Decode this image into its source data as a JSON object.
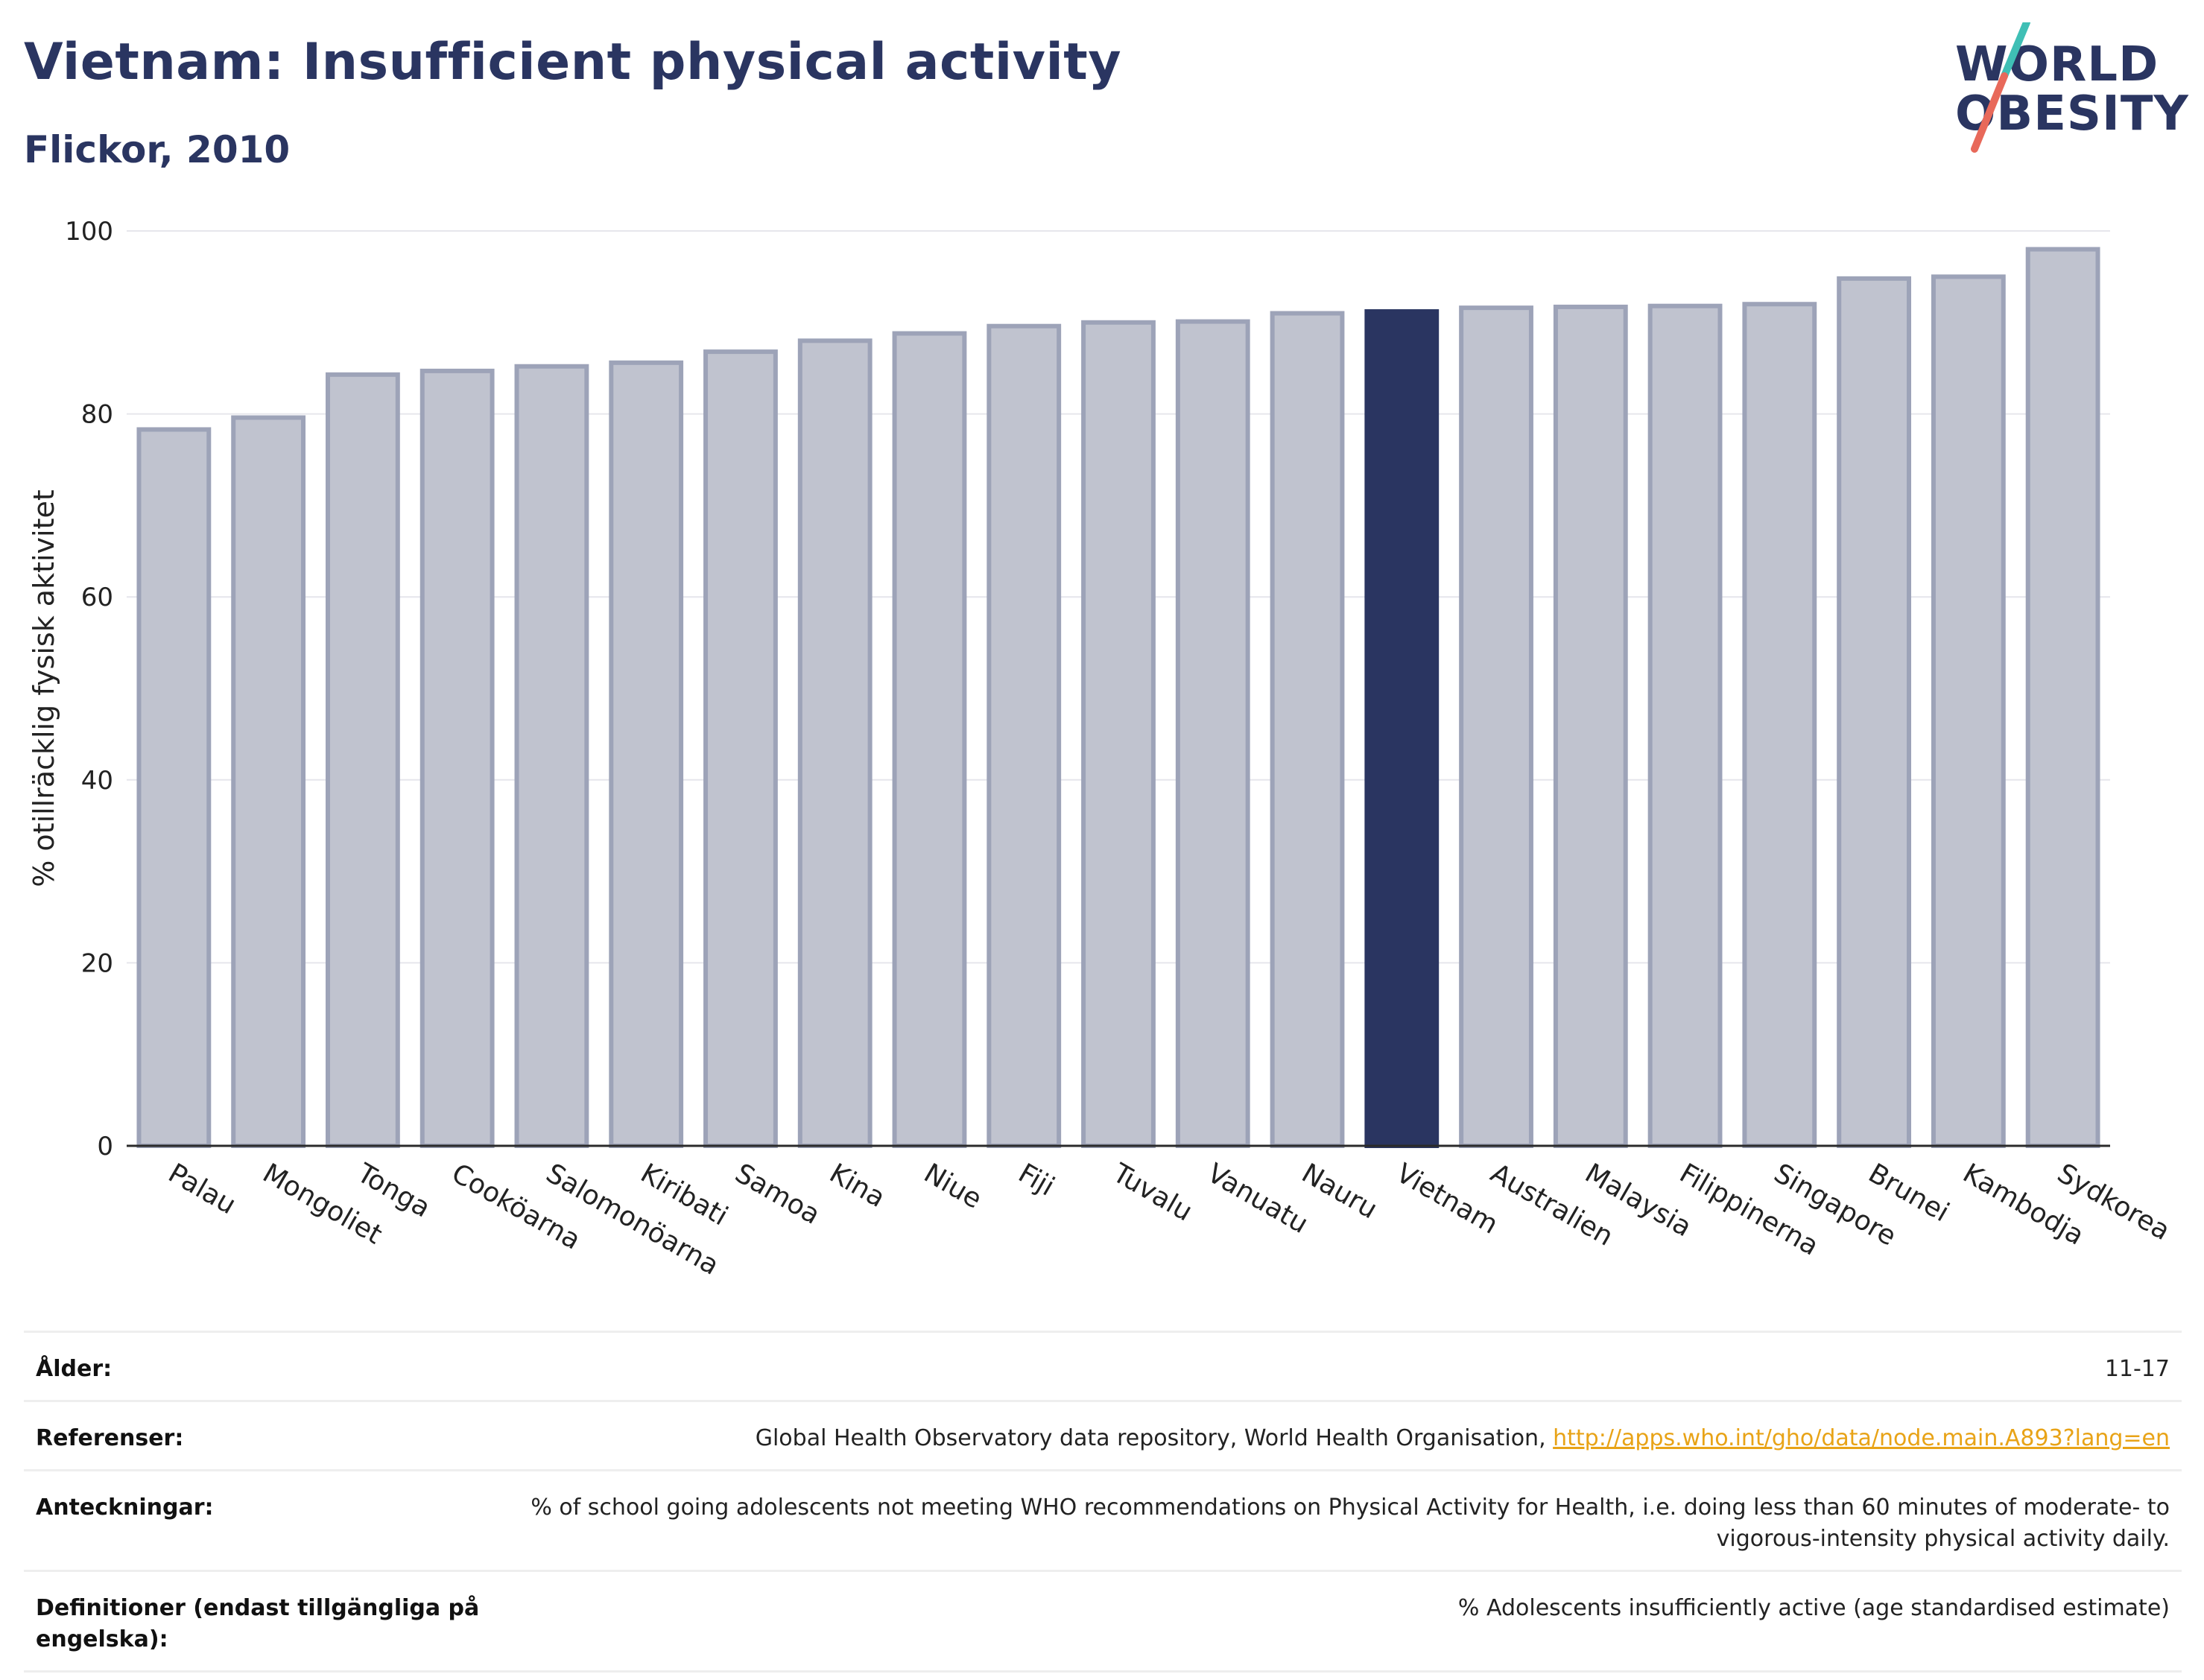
{
  "header": {
    "title": "Vietnam: Insufficient physical activity",
    "subtitle": "Flickor, 2010"
  },
  "logo": {
    "line1": "WORLD",
    "line2": "OBESITY",
    "colors": {
      "text": "#2a3561",
      "slash_top": "#3fbfb5",
      "slash_bottom": "#e8695a"
    }
  },
  "colors": {
    "bar": "#c0c3cf",
    "bar_border": "#9da3b8",
    "highlight": "#2a3561",
    "grid": "#e6e6ec",
    "axis": "#2a2a2a",
    "link": "#e8a317"
  },
  "chart_data": {
    "type": "bar",
    "ylabel": "% otillräcklig fysisk aktivitet",
    "ylim": [
      0,
      100
    ],
    "yticks": [
      0,
      20,
      40,
      60,
      80,
      100
    ],
    "grid": true,
    "highlight": "Vietnam",
    "categories": [
      "Palau",
      "Mongoliet",
      "Tonga",
      "Cooköarna",
      "Salomonöarna",
      "Kiribati",
      "Samoa",
      "Kina",
      "Niue",
      "Fiji",
      "Tuvalu",
      "Vanuatu",
      "Nauru",
      "Vietnam",
      "Australien",
      "Malaysia",
      "Filippinerna",
      "Singapore",
      "Brunei",
      "Kambodja",
      "Sydkorea"
    ],
    "values": [
      78.3,
      79.6,
      84.3,
      84.7,
      85.2,
      85.6,
      86.8,
      88.0,
      88.8,
      89.6,
      90.0,
      90.1,
      91.0,
      91.2,
      91.6,
      91.7,
      91.8,
      92.0,
      94.8,
      95.0,
      98.0
    ]
  },
  "info": {
    "rows": [
      {
        "label": "Ålder:",
        "value": "11-17"
      },
      {
        "label": "Referenser:",
        "value": "Global Health Observatory data repository, World Health Organisation, ",
        "link": "http://apps.who.int/gho/data/node.main.A893?lang=en"
      },
      {
        "label": "Anteckningar:",
        "value": "% of school going adolescents not meeting WHO recommendations on Physical Activity for Health, i.e. doing less than 60 minutes of moderate- to vigorous-intensity physical activity daily."
      },
      {
        "label": "Definitioner (endast tillgängliga på engelska):",
        "value": "% Adolescents insufficiently active (age standardised estimate)"
      }
    ]
  }
}
